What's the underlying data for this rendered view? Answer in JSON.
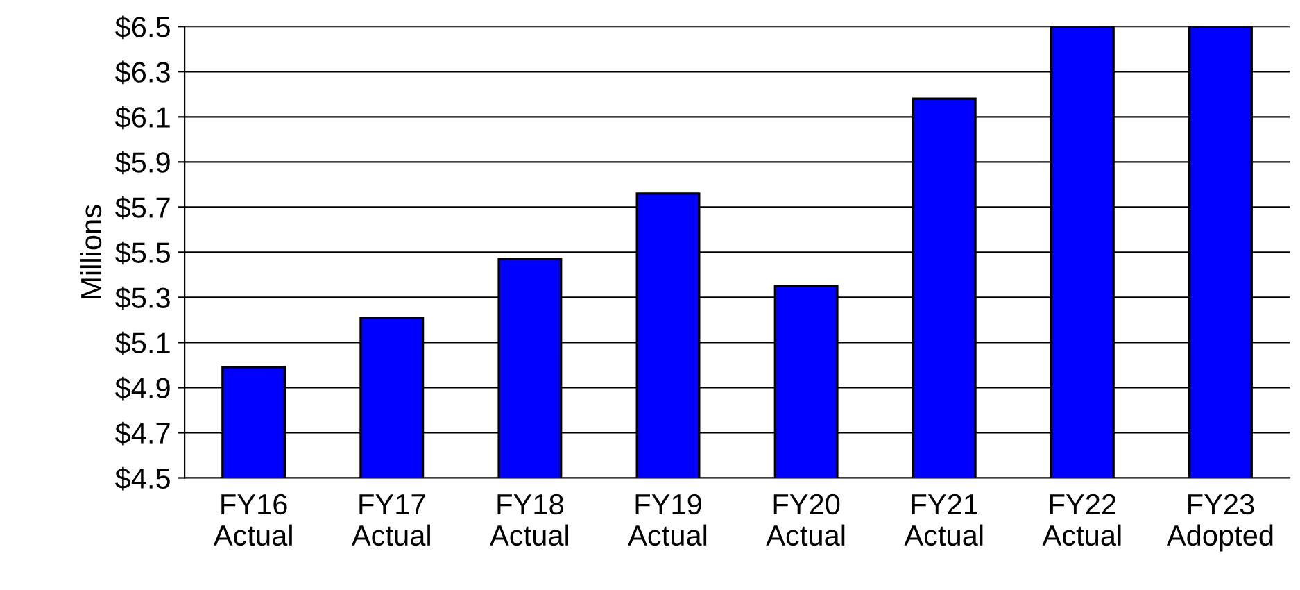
{
  "chart_data": {
    "type": "bar",
    "ylabel": "Millions",
    "categories": [
      "FY16\nActual",
      "FY17\nActual",
      "FY18\nActual",
      "FY19\nActual",
      "FY20\nActual",
      "FY21\nActual",
      "FY22\nActual",
      "FY23\nAdopted"
    ],
    "series": [
      {
        "color": "#0000ff",
        "values": [
          4.99,
          5.21,
          5.47,
          5.76,
          5.35,
          6.18,
          6.5,
          6.5
        ]
      }
    ],
    "ylim": [
      4.5,
      6.5
    ],
    "yticks": [
      {
        "value": 4.5,
        "label": "$4.5"
      },
      {
        "value": 4.7,
        "label": "$4.7"
      },
      {
        "value": 4.9,
        "label": "$4.9"
      },
      {
        "value": 5.1,
        "label": "$5.1"
      },
      {
        "value": 5.3,
        "label": "$5.3"
      },
      {
        "value": 5.5,
        "label": "$5.5"
      },
      {
        "value": 5.7,
        "label": "$5.7"
      },
      {
        "value": 5.9,
        "label": "$5.9"
      },
      {
        "value": 6.1,
        "label": "$6.1"
      },
      {
        "value": 6.3,
        "label": "$6.3"
      },
      {
        "value": 6.5,
        "label": "$6.5"
      }
    ],
    "grid": "y",
    "legend": false
  }
}
